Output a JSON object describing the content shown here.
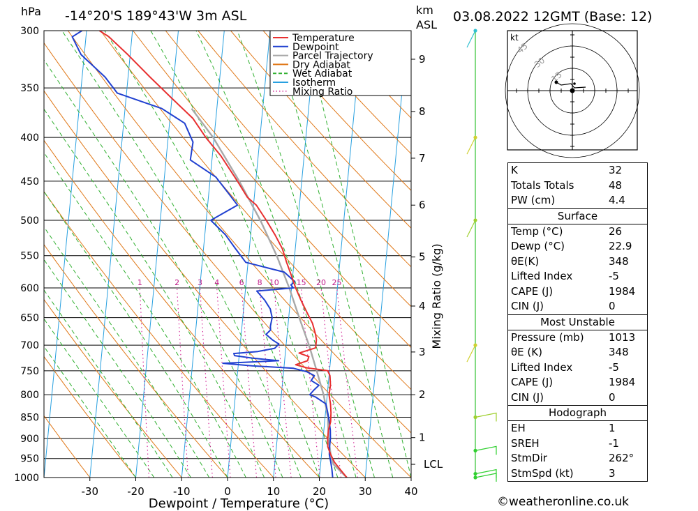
{
  "header": {
    "location": "-14°20'S  189°43'W  3m  ASL",
    "datetime": "03.08.2022  12GMT  (Base: 12)",
    "hpa_unit": "hPa",
    "km_unit": "km",
    "asl_unit": "ASL"
  },
  "chart_data": {
    "type": "line",
    "subtype": "skew-T log-P sounding",
    "xlabel": "Dewpoint / Temperature (°C)",
    "y2label": "Mixing Ratio (g/kg)",
    "xlim": [
      -40,
      40
    ],
    "ylim": [
      1000,
      300
    ],
    "pressure_ticks": [
      300,
      350,
      400,
      450,
      500,
      550,
      600,
      650,
      700,
      750,
      800,
      850,
      900,
      950,
      1000
    ],
    "temp_ticks": [
      -30,
      -20,
      -10,
      0,
      10,
      20,
      30,
      40
    ],
    "km_ticks": [
      {
        "label": "9",
        "p": 324
      },
      {
        "label": "8",
        "p": 373
      },
      {
        "label": "7",
        "p": 423
      },
      {
        "label": "6",
        "p": 480
      },
      {
        "label": "5",
        "p": 552
      },
      {
        "label": "4",
        "p": 630
      },
      {
        "label": "3",
        "p": 713
      },
      {
        "label": "2",
        "p": 800
      },
      {
        "label": "1",
        "p": 898
      },
      {
        "label": "LCL",
        "p": 965
      }
    ],
    "mixing_ratio_labels": [
      "1",
      "2",
      "3",
      "4",
      "6",
      "8",
      "10",
      "15",
      "20",
      "25"
    ],
    "mixing_ratio_values": [
      1,
      2,
      3,
      4,
      6,
      8,
      10,
      15,
      20,
      25
    ],
    "legend": [
      {
        "name": "Temperature",
        "color": "#e83030",
        "style": "solid"
      },
      {
        "name": "Dewpoint",
        "color": "#2040d0",
        "style": "solid"
      },
      {
        "name": "Parcel Trajectory",
        "color": "#a8a8a8",
        "style": "solid"
      },
      {
        "name": "Dry Adiabat",
        "color": "#e07818",
        "style": "solid"
      },
      {
        "name": "Wet Adiabat",
        "color": "#30b030",
        "style": "dashed"
      },
      {
        "name": "Isotherm",
        "color": "#28a0e0",
        "style": "solid"
      },
      {
        "name": "Mixing Ratio",
        "color": "#d01890",
        "style": "dotted"
      }
    ],
    "legend_placement": "top-right",
    "series": [
      {
        "name": "Temperature",
        "points": [
          [
            1000,
            26
          ],
          [
            980,
            24.5
          ],
          [
            960,
            23
          ],
          [
            940,
            22
          ],
          [
            920,
            21.2
          ],
          [
            900,
            21
          ],
          [
            880,
            21
          ],
          [
            860,
            21.3
          ],
          [
            840,
            21.2
          ],
          [
            820,
            20.9
          ],
          [
            800,
            20.4
          ],
          [
            780,
            20.5
          ],
          [
            760,
            20.2
          ],
          [
            750,
            19.6
          ],
          [
            744,
            15
          ],
          [
            738,
            12.5
          ],
          [
            730,
            15
          ],
          [
            722,
            15.2
          ],
          [
            715,
            13
          ],
          [
            705,
            16.5
          ],
          [
            690,
            16.5
          ],
          [
            680,
            16.2
          ],
          [
            660,
            15.3
          ],
          [
            640,
            13.8
          ],
          [
            620,
            12.3
          ],
          [
            600,
            10.9
          ],
          [
            580,
            9.7
          ],
          [
            560,
            8.4
          ],
          [
            540,
            7.2
          ],
          [
            520,
            5.3
          ],
          [
            500,
            3.1
          ],
          [
            480,
            0.6
          ],
          [
            470,
            -1.5
          ],
          [
            450,
            -4
          ],
          [
            420,
            -8.2
          ],
          [
            400,
            -11.8
          ],
          [
            380,
            -15
          ],
          [
            360,
            -20
          ],
          [
            340,
            -25.2
          ],
          [
            320,
            -30.5
          ],
          [
            305,
            -35
          ],
          [
            300,
            -37.2
          ]
        ]
      },
      {
        "name": "Dewpoint",
        "points": [
          [
            1000,
            22.9
          ],
          [
            980,
            22.6
          ],
          [
            960,
            22.2
          ],
          [
            940,
            21.7
          ],
          [
            920,
            21.6
          ],
          [
            900,
            21.6
          ],
          [
            880,
            21.4
          ],
          [
            860,
            21
          ],
          [
            840,
            20.5
          ],
          [
            820,
            19.9
          ],
          [
            805,
            17.5
          ],
          [
            800,
            16.2
          ],
          [
            790,
            17
          ],
          [
            780,
            18
          ],
          [
            770,
            16.2
          ],
          [
            760,
            16.8
          ],
          [
            752,
            15.1
          ],
          [
            745,
            12.1
          ],
          [
            740,
            3
          ],
          [
            735,
            -3.4
          ],
          [
            730,
            8.7
          ],
          [
            725,
            3
          ],
          [
            720,
            -1
          ],
          [
            716,
            -1.2
          ],
          [
            712,
            4
          ],
          [
            706,
            7.6
          ],
          [
            698,
            8.4
          ],
          [
            690,
            6.9
          ],
          [
            680,
            5.4
          ],
          [
            672,
            6.3
          ],
          [
            665,
            6.2
          ],
          [
            650,
            6.4
          ],
          [
            635,
            5.8
          ],
          [
            620,
            4.4
          ],
          [
            605,
            2.5
          ],
          [
            600,
            10.4
          ],
          [
            595,
            9.8
          ],
          [
            590,
            10.6
          ],
          [
            575,
            8.1
          ],
          [
            560,
            -0.5
          ],
          [
            540,
            -3
          ],
          [
            520,
            -5.5
          ],
          [
            500,
            -9
          ],
          [
            480,
            -3.5
          ],
          [
            465,
            -5.7
          ],
          [
            445,
            -8.8
          ],
          [
            425,
            -14.7
          ],
          [
            405,
            -14.5
          ],
          [
            385,
            -16.7
          ],
          [
            370,
            -22
          ],
          [
            355,
            -32
          ],
          [
            340,
            -35
          ],
          [
            320,
            -40.7
          ],
          [
            305,
            -43
          ],
          [
            300,
            -41
          ]
        ]
      },
      {
        "name": "Parcel Trajectory",
        "points": [
          [
            1000,
            26
          ],
          [
            965,
            22.8
          ],
          [
            940,
            22
          ],
          [
            900,
            21.2
          ],
          [
            850,
            20.6
          ],
          [
            800,
            19.2
          ],
          [
            750,
            17.2
          ],
          [
            700,
            15
          ],
          [
            650,
            12.3
          ],
          [
            600,
            9.5
          ],
          [
            550,
            6.1
          ],
          [
            500,
            1.8
          ],
          [
            450,
            -3.6
          ],
          [
            400,
            -10.2
          ],
          [
            370,
            -15.5
          ]
        ]
      }
    ],
    "wind_barbs": [
      {
        "p": 1000,
        "color": "#30d030"
      },
      {
        "p": 990,
        "color": "#30d030"
      },
      {
        "p": 930,
        "color": "#30d030"
      },
      {
        "p": 850,
        "color": "#a0d030"
      },
      {
        "p": 700,
        "color": "#d0d030"
      },
      {
        "p": 500,
        "color": "#a0d030"
      },
      {
        "p": 400,
        "color": "#d0d030"
      },
      {
        "p": 300,
        "color": "#30c0d0"
      }
    ],
    "hodograph": {
      "unit": "kt",
      "ring_labels": [
        "15",
        "30",
        "45"
      ],
      "rings_kt": [
        15,
        30,
        45
      ]
    }
  },
  "indices": [
    {
      "rows": [
        {
          "label": "K",
          "value": "32"
        },
        {
          "label": "Totals Totals",
          "value": "48"
        },
        {
          "label": "PW (cm)",
          "value": "4.4"
        }
      ]
    },
    {
      "title": "Surface",
      "rows": [
        {
          "label": "Temp (°C)",
          "value": "26"
        },
        {
          "label": "Dewp (°C)",
          "value": "22.9"
        },
        {
          "label": "θE(K)",
          "value": "348"
        },
        {
          "label": "Lifted Index",
          "value": "-5"
        },
        {
          "label": "CAPE (J)",
          "value": "1984"
        },
        {
          "label": "CIN (J)",
          "value": "0"
        }
      ]
    },
    {
      "title": "Most Unstable",
      "rows": [
        {
          "label": "Pressure (mb)",
          "value": "1013"
        },
        {
          "label": "θE (K)",
          "value": "348"
        },
        {
          "label": "Lifted Index",
          "value": "-5"
        },
        {
          "label": "CAPE (J)",
          "value": "1984"
        },
        {
          "label": "CIN (J)",
          "value": "0"
        }
      ]
    },
    {
      "title": "Hodograph",
      "rows": [
        {
          "label": "EH",
          "value": "1"
        },
        {
          "label": "SREH",
          "value": "-1"
        },
        {
          "label": "StmDir",
          "value": "262°"
        },
        {
          "label": "StmSpd (kt)",
          "value": "3"
        }
      ]
    }
  ],
  "copyright": "©weatheronline.co.uk"
}
